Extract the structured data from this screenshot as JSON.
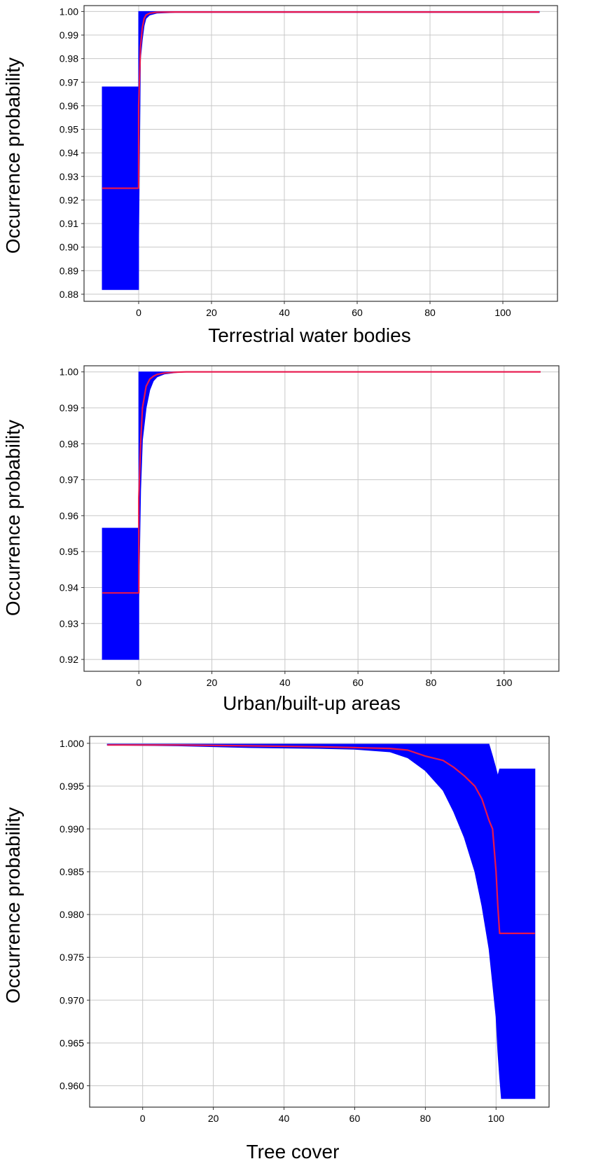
{
  "colors": {
    "band": "#0000ff",
    "line": "#e8174d",
    "grid": "#c8c8c8",
    "axis": "#333333",
    "background": "#ffffff"
  },
  "chart_data": [
    {
      "type": "area",
      "title": "",
      "xlabel": "Terrestrial water bodies",
      "ylabel": "Occurrence probability",
      "xlim": [
        -15,
        115
      ],
      "ylim": [
        0.877,
        1.0025
      ],
      "xticks": [
        0,
        20,
        40,
        60,
        80,
        100
      ],
      "yticks": [
        0.88,
        0.89,
        0.9,
        0.91,
        0.92,
        0.93,
        0.94,
        0.95,
        0.96,
        0.97,
        0.98,
        0.99,
        1.0
      ],
      "ytick_decimals": 2,
      "grid": true,
      "legend": "none",
      "series": [
        {
          "x": [
            -10,
            -0.01,
            0,
            0.5,
            1,
            1.5,
            2,
            3,
            5,
            10,
            20,
            40,
            60,
            80,
            100,
            110
          ],
          "mean": [
            0.925,
            0.925,
            0.96,
            0.985,
            0.993,
            0.997,
            0.9985,
            0.9993,
            0.9997,
            0.9998,
            0.9998,
            0.9998,
            0.9998,
            0.9998,
            0.9998,
            0.9998
          ],
          "lower": [
            0.882,
            0.882,
            0.905,
            0.98,
            0.988,
            0.994,
            0.997,
            0.9985,
            0.9993,
            0.9996,
            0.9996,
            0.9996,
            0.9996,
            0.9996,
            0.9996,
            0.9996
          ],
          "upper": [
            0.968,
            0.968,
            1.0,
            1.0,
            1.0,
            1.0,
            1.0,
            1.0,
            1.0,
            1.0,
            1.0,
            1.0,
            1.0,
            1.0,
            1.0,
            1.0
          ]
        }
      ]
    },
    {
      "type": "area",
      "title": "",
      "xlabel": "Urban/built-up areas",
      "ylabel": "Occurrence probability",
      "xlim": [
        -15,
        115
      ],
      "ylim": [
        0.9167,
        1.0017
      ],
      "xticks": [
        0,
        20,
        40,
        60,
        80,
        100
      ],
      "yticks": [
        0.92,
        0.93,
        0.94,
        0.95,
        0.96,
        0.97,
        0.98,
        0.99,
        1.0
      ],
      "ytick_decimals": 2,
      "grid": true,
      "legend": "none",
      "series": [
        {
          "x": [
            -10,
            -0.01,
            0,
            0.5,
            1,
            2,
            3,
            4,
            5,
            7,
            10,
            13,
            20,
            40,
            60,
            80,
            100,
            110
          ],
          "mean": [
            0.9385,
            0.9385,
            0.965,
            0.98,
            0.99,
            0.996,
            0.998,
            0.9988,
            0.9993,
            0.9997,
            0.9999,
            1.0,
            1.0,
            1.0,
            1.0,
            1.0,
            1.0,
            1.0
          ],
          "lower": [
            0.92,
            0.92,
            0.937,
            0.967,
            0.981,
            0.99,
            0.995,
            0.9975,
            0.9986,
            0.9994,
            0.9998,
            1.0,
            1.0,
            1.0,
            1.0,
            1.0,
            1.0,
            1.0
          ],
          "upper": [
            0.9565,
            0.9565,
            1.0,
            1.0,
            1.0,
            1.0,
            1.0,
            1.0,
            1.0,
            1.0,
            1.0,
            1.0,
            1.0,
            1.0,
            1.0,
            1.0,
            1.0,
            1.0
          ]
        }
      ]
    },
    {
      "type": "area",
      "title": "",
      "xlabel": "Tree cover",
      "ylabel": "Occurrence probability",
      "xlim": [
        -15,
        115
      ],
      "ylim": [
        0.9575,
        1.0008
      ],
      "xticks": [
        0,
        20,
        40,
        60,
        80,
        100
      ],
      "yticks": [
        0.96,
        0.965,
        0.97,
        0.975,
        0.98,
        0.985,
        0.99,
        0.995,
        1.0
      ],
      "ytick_decimals": 3,
      "grid": true,
      "legend": "none",
      "series": [
        {
          "x": [
            -10,
            10,
            30,
            50,
            60,
            70,
            75,
            80,
            85,
            88,
            91,
            94,
            96,
            98,
            99,
            100,
            100.5,
            101,
            101.5,
            102,
            111
          ],
          "mean": [
            0.9998,
            0.9998,
            0.9997,
            0.9996,
            0.9995,
            0.9994,
            0.9992,
            0.9985,
            0.998,
            0.9972,
            0.9962,
            0.995,
            0.9935,
            0.991,
            0.99,
            0.985,
            0.981,
            0.9778,
            0.9778,
            0.9778,
            0.9778
          ],
          "lower": [
            0.9998,
            0.9997,
            0.9995,
            0.9994,
            0.9993,
            0.999,
            0.9983,
            0.9968,
            0.9945,
            0.992,
            0.989,
            0.985,
            0.981,
            0.976,
            0.972,
            0.968,
            0.964,
            0.961,
            0.9585,
            0.9585,
            0.9585
          ],
          "upper": [
            0.9999,
            0.9999,
            0.9999,
            0.9999,
            0.9999,
            0.9999,
            0.9999,
            0.9999,
            0.9999,
            0.9999,
            0.9999,
            0.9999,
            0.9999,
            0.9999,
            0.9985,
            0.997,
            0.9962,
            0.997,
            0.997,
            0.997,
            0.997
          ]
        }
      ]
    }
  ]
}
